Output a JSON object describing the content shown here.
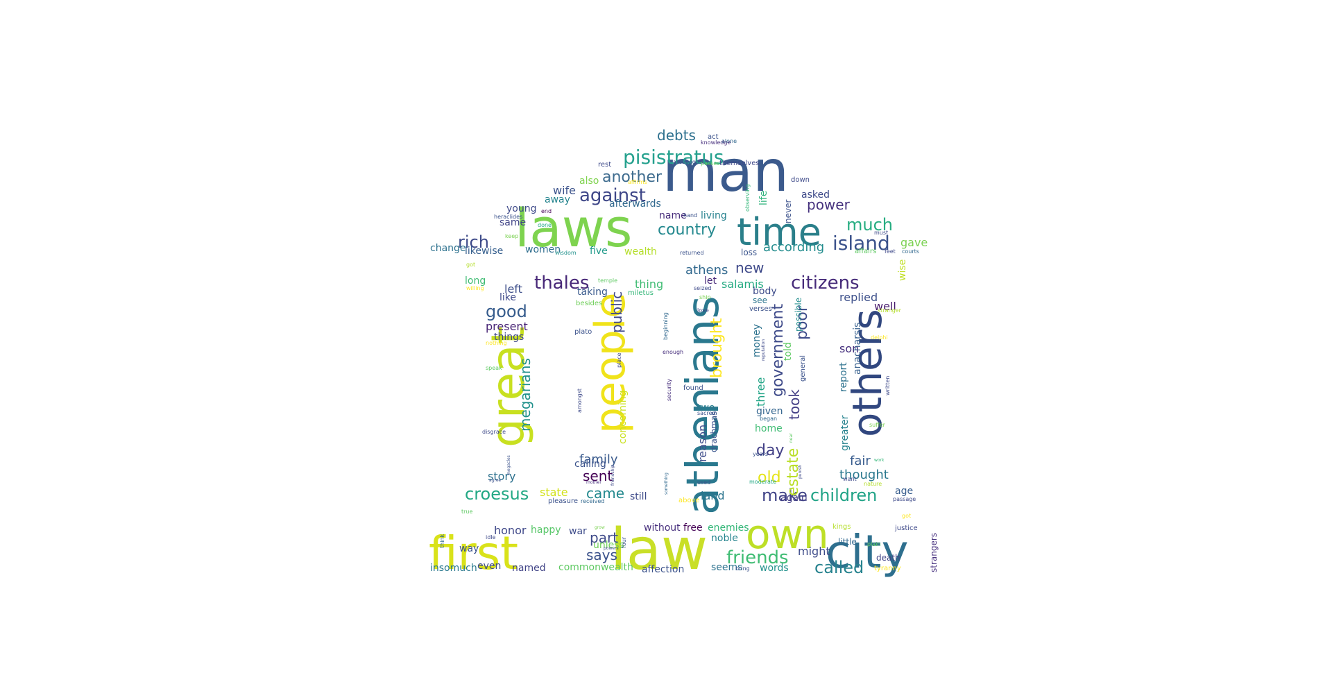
{
  "wordcloud": {
    "words": [
      {
        "text": "man",
        "color": "#3b5a8c"
      },
      {
        "text": "laws",
        "color": "#7ed34f"
      },
      {
        "text": "time",
        "color": "#2a7f8a"
      },
      {
        "text": "first",
        "color": "#d9e21a"
      },
      {
        "text": "law",
        "color": "#c9df27"
      },
      {
        "text": "own",
        "color": "#bddf26"
      },
      {
        "text": "city",
        "color": "#2e6f8e"
      },
      {
        "text": "athenians",
        "color": "#2a788e"
      },
      {
        "text": "people",
        "color": "#f0e31a"
      },
      {
        "text": "great",
        "color": "#c8e020"
      },
      {
        "text": "others",
        "color": "#31477f"
      },
      {
        "text": "pisistratus",
        "color": "#25a18e"
      },
      {
        "text": "against",
        "color": "#3f4788"
      },
      {
        "text": "another",
        "color": "#3d6b8e"
      },
      {
        "text": "country",
        "color": "#23888e"
      },
      {
        "text": "rich",
        "color": "#3e4a89"
      },
      {
        "text": "much",
        "color": "#27ad81"
      },
      {
        "text": "island",
        "color": "#3b528b"
      },
      {
        "text": "power",
        "color": "#46327e"
      },
      {
        "text": "thales",
        "color": "#482878"
      },
      {
        "text": "citizens",
        "color": "#472c7a"
      },
      {
        "text": "good",
        "color": "#365c8d"
      },
      {
        "text": "croesus",
        "color": "#22a884"
      },
      {
        "text": "children",
        "color": "#20a386"
      },
      {
        "text": "friends",
        "color": "#3fbc73"
      },
      {
        "text": "called",
        "color": "#26828e"
      },
      {
        "text": "says",
        "color": "#3b528b"
      },
      {
        "text": "debts",
        "color": "#2d708e"
      },
      {
        "text": "megarians",
        "color": "#21918c"
      },
      {
        "text": "brought",
        "color": "#fde725"
      },
      {
        "text": "government",
        "color": "#3e4a89"
      },
      {
        "text": "poor",
        "color": "#3e4c8a"
      },
      {
        "text": "took",
        "color": "#433e85"
      },
      {
        "text": "make",
        "color": "#414487"
      },
      {
        "text": "day",
        "color": "#424086"
      },
      {
        "text": "old",
        "color": "#e5e419"
      },
      {
        "text": "estate",
        "color": "#bade28"
      },
      {
        "text": "public",
        "color": "#3f4889"
      },
      {
        "text": "new",
        "color": "#3e4989"
      },
      {
        "text": "athens",
        "color": "#31688e"
      },
      {
        "text": "according",
        "color": "#228c8d"
      },
      {
        "text": "gave",
        "color": "#7ad151"
      },
      {
        "text": "wise",
        "color": "#c0df25"
      },
      {
        "text": "sent",
        "color": "#440154"
      },
      {
        "text": "came",
        "color": "#23898e"
      },
      {
        "text": "part",
        "color": "#3e4989"
      },
      {
        "text": "family",
        "color": "#38598c"
      },
      {
        "text": "replied",
        "color": "#3c4f8a"
      },
      {
        "text": "well",
        "color": "#481b6d"
      },
      {
        "text": "son",
        "color": "#46307e"
      },
      {
        "text": "anacharsis",
        "color": "#355f8d"
      },
      {
        "text": "thought",
        "color": "#2a788e"
      },
      {
        "text": "fair",
        "color": "#375b8d"
      },
      {
        "text": "report",
        "color": "#2c718e"
      },
      {
        "text": "greater",
        "color": "#26828e"
      },
      {
        "text": "wife",
        "color": "#3b528b"
      },
      {
        "text": "also",
        "color": "#7fd34e"
      },
      {
        "text": "away",
        "color": "#25848e"
      },
      {
        "text": "afterwards",
        "color": "#31688e"
      },
      {
        "text": "young",
        "color": "#3e4989"
      },
      {
        "text": "same",
        "color": "#414487"
      },
      {
        "text": "change",
        "color": "#2d718e"
      },
      {
        "text": "likewise",
        "color": "#355e8d"
      },
      {
        "text": "women",
        "color": "#2e6d8e"
      },
      {
        "text": "five",
        "color": "#1f9a8a"
      },
      {
        "text": "wealth",
        "color": "#b5de2b"
      },
      {
        "text": "loss",
        "color": "#3a548c"
      },
      {
        "text": "name",
        "color": "#472d7b"
      },
      {
        "text": "living",
        "color": "#26818e"
      },
      {
        "text": "life",
        "color": "#2eb37c"
      },
      {
        "text": "never",
        "color": "#3b518b"
      },
      {
        "text": "asked",
        "color": "#3e4a89"
      },
      {
        "text": "long",
        "color": "#3fbc73"
      },
      {
        "text": "left",
        "color": "#3d4e8a"
      },
      {
        "text": "like",
        "color": "#3e4989"
      },
      {
        "text": "present",
        "color": "#482475"
      },
      {
        "text": "things",
        "color": "#3f4788"
      },
      {
        "text": "thing",
        "color": "#3fbc73"
      },
      {
        "text": "taking",
        "color": "#38598c"
      },
      {
        "text": "let",
        "color": "#482979"
      },
      {
        "text": "salamis",
        "color": "#25ab82"
      },
      {
        "text": "body",
        "color": "#3e4c8a"
      },
      {
        "text": "see",
        "color": "#2b758e"
      },
      {
        "text": "told",
        "color": "#5ec962"
      },
      {
        "text": "possible",
        "color": "#228d8d"
      },
      {
        "text": "money",
        "color": "#2c728e"
      },
      {
        "text": "three",
        "color": "#20a486"
      },
      {
        "text": "given",
        "color": "#32648e"
      },
      {
        "text": "home",
        "color": "#3fbc73"
      },
      {
        "text": "two",
        "color": "#287c8e"
      },
      {
        "text": "reason",
        "color": "#3e4c8a"
      },
      {
        "text": "drachmas",
        "color": "#3a548c"
      },
      {
        "text": "concerning",
        "color": "#cae11f"
      },
      {
        "text": "story",
        "color": "#2d718e"
      },
      {
        "text": "state",
        "color": "#d2e21b"
      },
      {
        "text": "calling",
        "color": "#3b528b"
      },
      {
        "text": "still",
        "color": "#3e4a89"
      },
      {
        "text": "land",
        "color": "#2b748e"
      },
      {
        "text": "again",
        "color": "#433e85"
      },
      {
        "text": "age",
        "color": "#365c8d"
      },
      {
        "text": "honor",
        "color": "#3f4889"
      },
      {
        "text": "happy",
        "color": "#56c667"
      },
      {
        "text": "war",
        "color": "#3e4c8a"
      },
      {
        "text": "without",
        "color": "#472f7d"
      },
      {
        "text": "free",
        "color": "#440154"
      },
      {
        "text": "enemies",
        "color": "#35b779"
      },
      {
        "text": "noble",
        "color": "#25848e"
      },
      {
        "text": "unless",
        "color": "#6ece58"
      },
      {
        "text": "might",
        "color": "#3e4c8a"
      },
      {
        "text": "seems",
        "color": "#2c718e"
      },
      {
        "text": "words",
        "color": "#21918c"
      },
      {
        "text": "affection",
        "color": "#3b528b"
      },
      {
        "text": "commonwealth",
        "color": "#5ec962"
      },
      {
        "text": "named",
        "color": "#414487"
      },
      {
        "text": "even",
        "color": "#3e4989"
      },
      {
        "text": "insomuch",
        "color": "#29798e"
      },
      {
        "text": "way",
        "color": "#3b528b"
      },
      {
        "text": "strangers",
        "color": "#46307e"
      },
      {
        "text": "little",
        "color": "#31688e"
      },
      {
        "text": "death",
        "color": "#414487"
      },
      {
        "text": "tyranny",
        "color": "#fde725"
      },
      {
        "text": "justice",
        "color": "#3e4989"
      },
      {
        "text": "rest",
        "color": "#3e4a89"
      },
      {
        "text": "act",
        "color": "#3b528b"
      },
      {
        "text": "alone",
        "color": "#31688e"
      },
      {
        "text": "knowledge",
        "color": "#472f7d"
      },
      {
        "text": "themselves",
        "color": "#3f4788"
      },
      {
        "text": "areopagus",
        "color": "#3b528b"
      },
      {
        "text": "passes",
        "color": "#5ec962"
      },
      {
        "text": "down",
        "color": "#3e4a89"
      },
      {
        "text": "affirms",
        "color": "#fde725"
      },
      {
        "text": "observing",
        "color": "#35b779"
      },
      {
        "text": "end",
        "color": "#440154"
      },
      {
        "text": "heraclides",
        "color": "#3b528b"
      },
      {
        "text": "done",
        "color": "#22a884"
      },
      {
        "text": "hand",
        "color": "#3b528b"
      },
      {
        "text": "keep",
        "color": "#7ad151"
      },
      {
        "text": "must",
        "color": "#3e4a89"
      },
      {
        "text": "affairs",
        "color": "#5ec962"
      },
      {
        "text": "feet",
        "color": "#3e4989"
      },
      {
        "text": "courts",
        "color": "#31688e"
      },
      {
        "text": "returned",
        "color": "#3b528b"
      },
      {
        "text": "wisdom",
        "color": "#21918c"
      },
      {
        "text": "got",
        "color": "#b5de2b"
      },
      {
        "text": "willing",
        "color": "#fde725"
      },
      {
        "text": "temple",
        "color": "#5ec962"
      },
      {
        "text": "miletus",
        "color": "#35b779"
      },
      {
        "text": "seized",
        "color": "#3e4a89"
      },
      {
        "text": "ship",
        "color": "#7ad151"
      },
      {
        "text": "besides",
        "color": "#6ece58"
      },
      {
        "text": "love",
        "color": "#3e4989"
      },
      {
        "text": "verses",
        "color": "#3b528b"
      },
      {
        "text": "stranger",
        "color": "#b5de2b"
      },
      {
        "text": "plato",
        "color": "#3b528b"
      },
      {
        "text": "beginning",
        "color": "#31688e"
      },
      {
        "text": "reputation",
        "color": "#3e4989"
      },
      {
        "text": "enough",
        "color": "#472f7d"
      },
      {
        "text": "place",
        "color": "#3e4a89"
      },
      {
        "text": "general",
        "color": "#3b528b"
      },
      {
        "text": "nothing",
        "color": "#fde725"
      },
      {
        "text": "speak",
        "color": "#5ec962"
      },
      {
        "text": "delphi",
        "color": "#fde725"
      },
      {
        "text": "written",
        "color": "#3e4989"
      },
      {
        "text": "found",
        "color": "#3b528b"
      },
      {
        "text": "security",
        "color": "#472f7d"
      },
      {
        "text": "amongst",
        "color": "#3e4a89"
      },
      {
        "text": "sacred",
        "color": "#3b528b"
      },
      {
        "text": "began",
        "color": "#31688e"
      },
      {
        "text": "near",
        "color": "#5ec962"
      },
      {
        "text": "suffer",
        "color": "#7ad151"
      },
      {
        "text": "disgrace",
        "color": "#3e4a89"
      },
      {
        "text": "years",
        "color": "#3b528b"
      },
      {
        "text": "work",
        "color": "#35b779"
      },
      {
        "text": "megacles",
        "color": "#3b528b"
      },
      {
        "text": "punish",
        "color": "#3e4989"
      },
      {
        "text": "something",
        "color": "#31688e"
      },
      {
        "text": "friendship",
        "color": "#3e4a89"
      },
      {
        "text": "used",
        "color": "#3b528b"
      },
      {
        "text": "moderate",
        "color": "#22a884"
      },
      {
        "text": "want",
        "color": "#3e4989"
      },
      {
        "text": "nature",
        "color": "#b5de2b"
      },
      {
        "text": "agree",
        "color": "#3b528b"
      },
      {
        "text": "mother",
        "color": "#472f7d"
      },
      {
        "text": "passage",
        "color": "#3e4a89"
      },
      {
        "text": "pleasure",
        "color": "#3b528b"
      },
      {
        "text": "received",
        "color": "#31688e"
      },
      {
        "text": "above",
        "color": "#fde725"
      },
      {
        "text": "true",
        "color": "#5ec962"
      },
      {
        "text": "grow",
        "color": "#7ad151"
      },
      {
        "text": "kings",
        "color": "#b5de2b"
      },
      {
        "text": "got",
        "color": "#fde725"
      },
      {
        "text": "think",
        "color": "#31688e"
      },
      {
        "text": "idle",
        "color": "#3e4989"
      },
      {
        "text": "four",
        "color": "#3b528b"
      },
      {
        "text": "powers",
        "color": "#3e4a89"
      },
      {
        "text": "plain",
        "color": "#5ec962"
      },
      {
        "text": "bring",
        "color": "#3b528b"
      }
    ]
  }
}
